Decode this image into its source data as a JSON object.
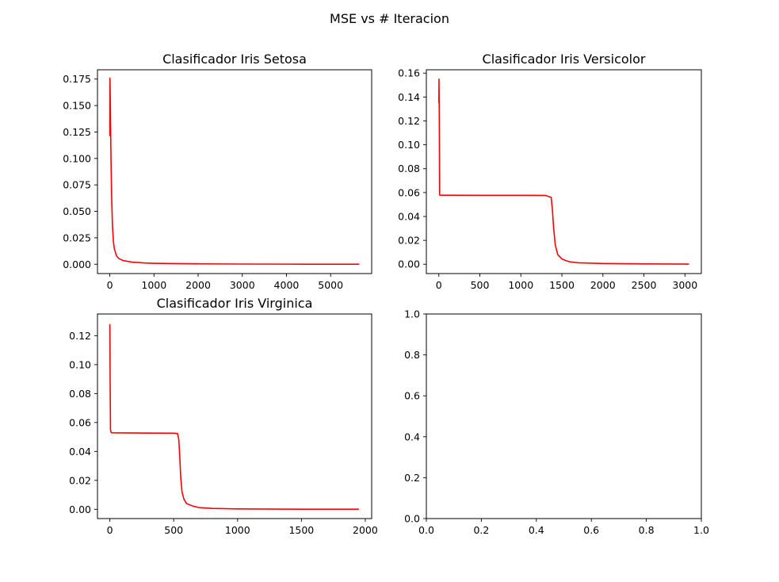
{
  "figure": {
    "suptitle": "MSE vs # Iteracion"
  },
  "colors": {
    "line": "#ff0000",
    "axes": "#000000",
    "background": "#ffffff"
  },
  "chart_data": [
    {
      "type": "line",
      "title": "Clasificador Iris Setosa",
      "xlabel": "",
      "ylabel": "",
      "xlim": [
        -280,
        5930
      ],
      "ylim": [
        -0.0088,
        0.1838
      ],
      "xticks": [
        0,
        1000,
        2000,
        3000,
        4000,
        5000
      ],
      "xtick_labels": [
        "0",
        "1000",
        "2000",
        "3000",
        "4000",
        "5000"
      ],
      "yticks": [
        0.0,
        0.025,
        0.05,
        0.075,
        0.1,
        0.125,
        0.15,
        0.175
      ],
      "ytick_labels": [
        "0.000",
        "0.025",
        "0.050",
        "0.075",
        "0.100",
        "0.125",
        "0.150",
        "0.175"
      ],
      "grid": false,
      "series": [
        {
          "color": "#ff0000",
          "x": [
            0,
            2,
            5,
            10,
            20,
            30,
            40,
            60,
            80,
            100,
            150,
            200,
            300,
            500,
            800,
            1000,
            1500,
            2000,
            3000,
            4000,
            5000,
            5650
          ],
          "y": [
            0.121,
            0.176,
            0.17,
            0.155,
            0.12,
            0.09,
            0.065,
            0.036,
            0.022,
            0.015,
            0.008,
            0.0055,
            0.0035,
            0.002,
            0.0012,
            0.0009,
            0.0006,
            0.0004,
            0.0002,
            0.0001,
            5e-05,
            3e-05
          ]
        }
      ]
    },
    {
      "type": "line",
      "title": "Clasificador Iris Versicolor",
      "xlabel": "",
      "ylabel": "",
      "xlim": [
        -152,
        3200
      ],
      "ylim": [
        -0.0078,
        0.1628
      ],
      "xticks": [
        0,
        500,
        1000,
        1500,
        2000,
        2500,
        3000
      ],
      "xtick_labels": [
        "0",
        "500",
        "1000",
        "1500",
        "2000",
        "2500",
        "3000"
      ],
      "yticks": [
        0.0,
        0.02,
        0.04,
        0.06,
        0.08,
        0.1,
        0.12,
        0.14,
        0.16
      ],
      "ytick_labels": [
        "0.00",
        "0.02",
        "0.04",
        "0.06",
        "0.08",
        "0.10",
        "0.12",
        "0.14",
        "0.16"
      ],
      "grid": false,
      "series": [
        {
          "color": "#ff0000",
          "x": [
            0,
            2,
            5,
            10,
            20,
            50,
            500,
            1000,
            1300,
            1370,
            1385,
            1400,
            1420,
            1450,
            1500,
            1550,
            1600,
            1700,
            2000,
            2500,
            3050
          ],
          "y": [
            0.135,
            0.155,
            0.13,
            0.058,
            0.0578,
            0.0578,
            0.0577,
            0.0577,
            0.0576,
            0.056,
            0.045,
            0.03,
            0.016,
            0.008,
            0.0045,
            0.003,
            0.002,
            0.0012,
            0.0006,
            0.0003,
            0.0001
          ]
        }
      ]
    },
    {
      "type": "line",
      "title": "Clasificador Iris Virginica",
      "xlabel": "",
      "ylabel": "",
      "xlim": [
        -97,
        2050
      ],
      "ylim": [
        -0.0064,
        0.135
      ],
      "xticks": [
        0,
        500,
        1000,
        1500,
        2000
      ],
      "xtick_labels": [
        "0",
        "500",
        "1000",
        "1500",
        "2000"
      ],
      "yticks": [
        0.0,
        0.02,
        0.04,
        0.06,
        0.08,
        0.1,
        0.12
      ],
      "ytick_labels": [
        "0.00",
        "0.02",
        "0.04",
        "0.06",
        "0.08",
        "0.10",
        "0.12"
      ],
      "grid": false,
      "series": [
        {
          "color": "#ff0000",
          "x": [
            0,
            2,
            5,
            10,
            20,
            100,
            300,
            500,
            530,
            540,
            548,
            555,
            565,
            580,
            600,
            650,
            700,
            800,
            1000,
            1500,
            1950
          ],
          "y": [
            0.128,
            0.09,
            0.055,
            0.053,
            0.0529,
            0.0528,
            0.0527,
            0.0526,
            0.0524,
            0.048,
            0.035,
            0.022,
            0.012,
            0.007,
            0.004,
            0.0022,
            0.0012,
            0.0006,
            0.0003,
            0.0001,
            5e-05
          ]
        }
      ]
    },
    {
      "type": "line",
      "title": "",
      "xlabel": "",
      "ylabel": "",
      "xlim": [
        0,
        1
      ],
      "ylim": [
        0,
        1
      ],
      "xticks": [
        0,
        0.2,
        0.4,
        0.6,
        0.8,
        1.0
      ],
      "xtick_labels": [
        "0.0",
        "0.2",
        "0.4",
        "0.6",
        "0.8",
        "1.0"
      ],
      "yticks": [
        0,
        0.2,
        0.4,
        0.6,
        0.8,
        1.0
      ],
      "ytick_labels": [
        "0.0",
        "0.2",
        "0.4",
        "0.6",
        "0.8",
        "1.0"
      ],
      "grid": false,
      "series": []
    }
  ]
}
